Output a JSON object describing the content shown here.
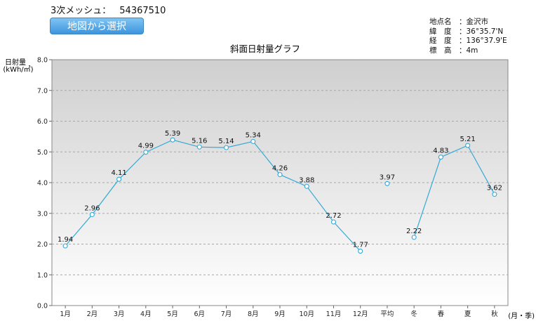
{
  "header": {
    "mesh_label": "3次メッシュ：",
    "mesh_code": "54367510",
    "map_button_label": "地図から選択"
  },
  "site_info": [
    {
      "label": "地点名",
      "value": "金沢市"
    },
    {
      "label": "緯　度",
      "value": "36°35.7'N"
    },
    {
      "label": "経　度",
      "value": "136°37.9'E"
    },
    {
      "label": "標　高",
      "value": "4m"
    }
  ],
  "chart_data": {
    "type": "line",
    "title": "斜面日射量グラフ",
    "ylabel": "日射量",
    "yunit": "(kWh/㎡)",
    "xunit": "(月・季)",
    "ylim": [
      0,
      8
    ],
    "yticks": [
      "0.0",
      "1.0",
      "2.0",
      "3.0",
      "4.0",
      "5.0",
      "6.0",
      "7.0",
      "8.0"
    ],
    "grid": true,
    "categories": [
      "1月",
      "2月",
      "3月",
      "4月",
      "5月",
      "6月",
      "7月",
      "8月",
      "9月",
      "10月",
      "11月",
      "12月",
      "平均",
      "冬",
      "春",
      "夏",
      "秋"
    ],
    "values": [
      1.94,
      2.96,
      4.11,
      4.99,
      5.39,
      5.16,
      5.14,
      5.34,
      4.26,
      3.88,
      2.72,
      1.77,
      3.97,
      2.22,
      4.83,
      5.21,
      3.62
    ],
    "value_labels": [
      "1.94",
      "2.96",
      "4.11",
      "4.99",
      "5.39",
      "5.16",
      "5.14",
      "5.34",
      "4.26",
      "3.88",
      "2.72",
      "1.77",
      "3.97",
      "2.22",
      "4.83",
      "5.21",
      "3.62"
    ],
    "line_groups": [
      [
        0,
        11
      ],
      [
        12,
        12
      ],
      [
        13,
        16
      ]
    ],
    "colors": {
      "line": "#35a9d6",
      "plot_top": "#cfcfcf",
      "plot_bottom": "#ffffff"
    }
  }
}
